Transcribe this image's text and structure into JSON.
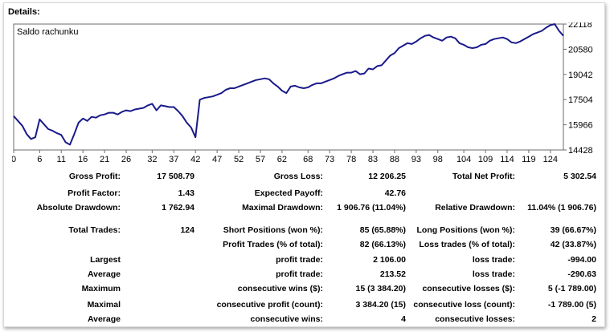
{
  "details_label": "Details:",
  "chart_data": {
    "type": "line",
    "title": "Saldo rachunku",
    "line_color": "#1a1a8c",
    "x_ticks": [
      "0",
      "6",
      "11",
      "16",
      "21",
      "26",
      "32",
      "37",
      "42",
      "47",
      "52",
      "57",
      "62",
      "68",
      "73",
      "78",
      "83",
      "88",
      "93",
      "98",
      "104",
      "109",
      "114",
      "119",
      "124"
    ],
    "y_ticks": [
      "22118",
      "20580",
      "19042",
      "17504",
      "15966",
      "14428"
    ],
    "ylim": [
      14428,
      22118
    ],
    "xlim": [
      0,
      127
    ],
    "x": [
      0,
      1,
      2,
      3,
      4,
      5,
      6,
      7,
      8,
      9,
      10,
      11,
      12,
      13,
      14,
      15,
      16,
      17,
      18,
      19,
      20,
      21,
      22,
      23,
      24,
      25,
      26,
      27,
      28,
      29,
      30,
      31,
      32,
      33,
      34,
      35,
      36,
      37,
      38,
      39,
      40,
      41,
      42,
      43,
      44,
      45,
      46,
      47,
      48,
      49,
      50,
      51,
      52,
      53,
      54,
      55,
      56,
      57,
      58,
      59,
      60,
      61,
      62,
      63,
      64,
      65,
      66,
      67,
      68,
      69,
      70,
      71,
      72,
      73,
      74,
      75,
      76,
      77,
      78,
      79,
      80,
      81,
      82,
      83,
      84,
      85,
      86,
      87,
      88,
      89,
      90,
      91,
      92,
      93,
      94,
      95,
      96,
      97,
      98,
      99,
      100,
      101,
      102,
      103,
      104,
      105,
      106,
      107,
      108,
      109,
      110,
      111,
      112,
      113,
      114,
      115,
      116,
      117,
      118,
      119,
      120,
      121,
      122,
      123,
      124,
      125,
      126,
      127
    ],
    "values": [
      16500,
      16200,
      15900,
      15400,
      15100,
      15200,
      16300,
      16000,
      15700,
      15600,
      15450,
      15350,
      14900,
      14750,
      15400,
      16100,
      16350,
      16200,
      16450,
      16400,
      16550,
      16600,
      16700,
      16700,
      16600,
      16750,
      16850,
      16800,
      16900,
      16950,
      17000,
      17150,
      17250,
      16850,
      17150,
      17100,
      17050,
      17050,
      16800,
      16500,
      16100,
      15800,
      15200,
      17500,
      17600,
      17650,
      17700,
      17800,
      17900,
      18100,
      18200,
      18200,
      18300,
      18400,
      18500,
      18600,
      18700,
      18750,
      18800,
      18750,
      18500,
      18300,
      18050,
      17900,
      18300,
      18350,
      18250,
      18200,
      18250,
      18400,
      18500,
      18500,
      18600,
      18700,
      18800,
      18950,
      19050,
      19150,
      19150,
      19250,
      19050,
      19100,
      19400,
      19350,
      19550,
      19600,
      19900,
      20200,
      20350,
      20650,
      20800,
      20950,
      20900,
      21050,
      21250,
      21400,
      21450,
      21300,
      21200,
      21100,
      21300,
      21350,
      21250,
      20950,
      20850,
      20700,
      20650,
      20700,
      20850,
      20900,
      21100,
      21200,
      21250,
      21300,
      21200,
      21000,
      20950,
      21050,
      21200,
      21350,
      21500,
      21600,
      21700,
      21900,
      22050,
      22118,
      21700,
      21400
    ]
  },
  "stats": {
    "gross_profit": {
      "label": "Gross Profit:",
      "value": "17 508.79"
    },
    "gross_loss": {
      "label": "Gross Loss:",
      "value": "12 206.25"
    },
    "total_net_profit": {
      "label": "Total Net Profit:",
      "value": "5 302.54"
    },
    "profit_factor": {
      "label": "Profit Factor:",
      "value": "1.43"
    },
    "expected_payoff": {
      "label": "Expected Payoff:",
      "value": "42.76"
    },
    "absolute_drawdown": {
      "label": "Absolute Drawdown:",
      "value": "1 762.94"
    },
    "maximal_drawdown": {
      "label": "Maximal Drawdown:",
      "value": "1 906.76 (11.04%)"
    },
    "relative_drawdown": {
      "label": "Relative Drawdown:",
      "value": "11.04% (1 906.76)"
    },
    "total_trades": {
      "label": "Total Trades:",
      "value": "124"
    },
    "short_positions": {
      "label": "Short Positions (won %):",
      "value": "85 (65.88%)"
    },
    "long_positions": {
      "label": "Long Positions (won %):",
      "value": "39 (66.67%)"
    },
    "profit_trades": {
      "label": "Profit Trades (% of total):",
      "value": "82 (66.13%)"
    },
    "loss_trades": {
      "label": "Loss trades (% of total):",
      "value": "42 (33.87%)"
    },
    "largest": {
      "label": "Largest",
      "profit_label": "profit trade:",
      "profit_value": "2 106.00",
      "loss_label": "loss trade:",
      "loss_value": "-994.00"
    },
    "average": {
      "label": "Average",
      "profit_label": "profit trade:",
      "profit_value": "213.52",
      "loss_label": "loss trade:",
      "loss_value": "-290.63"
    },
    "maximum": {
      "label": "Maximum",
      "profit_label": "consecutive wins ($):",
      "profit_value": "15 (3 384.20)",
      "loss_label": "consecutive losses ($):",
      "loss_value": "5 (-1 789.00)"
    },
    "maximal": {
      "label": "Maximal",
      "profit_label": "consecutive profit (count):",
      "profit_value": "3 384.20 (15)",
      "loss_label": "consecutive loss (count):",
      "loss_value": "-1 789.00 (5)"
    },
    "average_consec": {
      "label": "Average",
      "profit_label": "consecutive wins:",
      "profit_value": "4",
      "loss_label": "consecutive losses:",
      "loss_value": "2"
    }
  }
}
